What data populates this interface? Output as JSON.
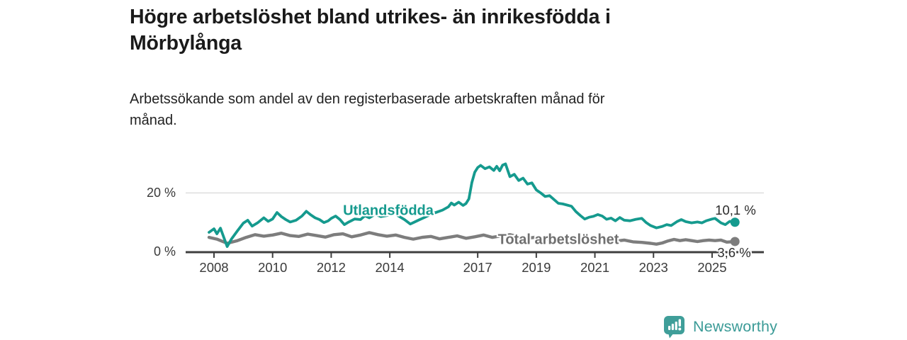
{
  "header": {
    "title_line1": "Högre arbetslöshet bland utrikes- än inrikesfödda i",
    "title_line2": "Mörbylånga",
    "subtitle_line1": "Arbetssökande som andel av den registerbaserade arbetskraften månad för",
    "subtitle_line2": "månad."
  },
  "chart_data": {
    "type": "line",
    "title": "Högre arbetslöshet bland utrikes- än inrikesfödda i Mörbylånga",
    "subtitle": "Arbetssökande som andel av den registerbaserade arbetskraften månad för månad.",
    "xlabel": "",
    "ylabel": "%",
    "xlim": [
      2007.8,
      2025.9
    ],
    "ylim": [
      0,
      33
    ],
    "grid": "y-at-20-only",
    "legend_position": "inline-labels",
    "x_ticks": [
      2008,
      2010,
      2012,
      2014,
      2017,
      2019,
      2021,
      2023,
      2025
    ],
    "y_ticks": [
      {
        "value": 0,
        "label": "0 %"
      },
      {
        "value": 20,
        "label": "20 %"
      }
    ],
    "axis_color": "#3f3f3f",
    "grid_color": "#d8d8d8",
    "series": [
      {
        "name": "Utlandsfödda",
        "color": "#159a8e",
        "end_label": "10,1 %",
        "end_value": 10.1,
        "points": [
          [
            2007.83,
            6.7
          ],
          [
            2008.0,
            7.9
          ],
          [
            2008.1,
            6.2
          ],
          [
            2008.22,
            8.1
          ],
          [
            2008.45,
            1.9
          ],
          [
            2008.6,
            4.5
          ],
          [
            2008.8,
            7.2
          ],
          [
            2009.0,
            9.8
          ],
          [
            2009.15,
            10.8
          ],
          [
            2009.3,
            8.8
          ],
          [
            2009.5,
            10.0
          ],
          [
            2009.7,
            11.6
          ],
          [
            2009.85,
            10.4
          ],
          [
            2010.0,
            11.2
          ],
          [
            2010.15,
            13.4
          ],
          [
            2010.3,
            12.0
          ],
          [
            2010.45,
            11.0
          ],
          [
            2010.6,
            10.2
          ],
          [
            2010.8,
            10.8
          ],
          [
            2011.0,
            12.2
          ],
          [
            2011.15,
            13.8
          ],
          [
            2011.3,
            12.6
          ],
          [
            2011.45,
            11.6
          ],
          [
            2011.6,
            11.0
          ],
          [
            2011.75,
            10.0
          ],
          [
            2011.9,
            10.6
          ],
          [
            2012.0,
            11.4
          ],
          [
            2012.15,
            12.2
          ],
          [
            2012.3,
            11.0
          ],
          [
            2012.45,
            9.3
          ],
          [
            2012.6,
            10.2
          ],
          [
            2012.8,
            11.2
          ],
          [
            2013.0,
            11.0
          ],
          [
            2013.15,
            12.3
          ],
          [
            2013.3,
            11.6
          ],
          [
            2013.5,
            12.8
          ],
          [
            2013.7,
            12.0
          ],
          [
            2013.9,
            12.4
          ],
          [
            2014.0,
            12.8
          ],
          [
            2014.15,
            13.1
          ],
          [
            2014.3,
            12.2
          ],
          [
            2014.5,
            11.0
          ],
          [
            2014.7,
            9.5
          ],
          [
            2014.85,
            10.2
          ],
          [
            2015.0,
            10.9
          ],
          [
            2015.2,
            11.8
          ],
          [
            2015.4,
            12.8
          ],
          [
            2015.6,
            13.5
          ],
          [
            2015.8,
            14.2
          ],
          [
            2016.0,
            15.3
          ],
          [
            2016.1,
            16.6
          ],
          [
            2016.2,
            15.9
          ],
          [
            2016.35,
            16.9
          ],
          [
            2016.5,
            15.8
          ],
          [
            2016.6,
            16.4
          ],
          [
            2016.7,
            18.0
          ],
          [
            2016.8,
            23.5
          ],
          [
            2016.9,
            27.0
          ],
          [
            2017.0,
            28.6
          ],
          [
            2017.1,
            29.3
          ],
          [
            2017.25,
            28.2
          ],
          [
            2017.4,
            28.8
          ],
          [
            2017.55,
            27.6
          ],
          [
            2017.65,
            29.0
          ],
          [
            2017.75,
            27.5
          ],
          [
            2017.85,
            29.4
          ],
          [
            2017.95,
            29.8
          ],
          [
            2018.1,
            25.5
          ],
          [
            2018.25,
            26.3
          ],
          [
            2018.4,
            24.2
          ],
          [
            2018.55,
            25.0
          ],
          [
            2018.7,
            23.0
          ],
          [
            2018.85,
            23.4
          ],
          [
            2019.0,
            21.0
          ],
          [
            2019.15,
            20.0
          ],
          [
            2019.3,
            18.8
          ],
          [
            2019.45,
            19.1
          ],
          [
            2019.6,
            17.8
          ],
          [
            2019.75,
            16.5
          ],
          [
            2019.9,
            16.3
          ],
          [
            2020.05,
            15.9
          ],
          [
            2020.2,
            15.5
          ],
          [
            2020.35,
            13.7
          ],
          [
            2020.5,
            12.4
          ],
          [
            2020.65,
            11.2
          ],
          [
            2020.8,
            11.8
          ],
          [
            2020.95,
            12.1
          ],
          [
            2021.1,
            12.7
          ],
          [
            2021.25,
            12.2
          ],
          [
            2021.4,
            11.1
          ],
          [
            2021.55,
            11.5
          ],
          [
            2021.7,
            10.6
          ],
          [
            2021.85,
            11.7
          ],
          [
            2022.0,
            10.8
          ],
          [
            2022.2,
            10.6
          ],
          [
            2022.4,
            11.1
          ],
          [
            2022.6,
            11.4
          ],
          [
            2022.75,
            10.0
          ],
          [
            2022.9,
            9.0
          ],
          [
            2023.1,
            8.2
          ],
          [
            2023.3,
            8.7
          ],
          [
            2023.45,
            9.3
          ],
          [
            2023.6,
            9.0
          ],
          [
            2023.8,
            10.3
          ],
          [
            2023.95,
            11.0
          ],
          [
            2024.1,
            10.3
          ],
          [
            2024.3,
            9.9
          ],
          [
            2024.5,
            10.2
          ],
          [
            2024.65,
            9.9
          ],
          [
            2024.8,
            10.6
          ],
          [
            2025.0,
            11.2
          ],
          [
            2025.1,
            11.4
          ],
          [
            2025.3,
            9.9
          ],
          [
            2025.45,
            9.3
          ],
          [
            2025.6,
            10.4
          ],
          [
            2025.78,
            10.1
          ]
        ]
      },
      {
        "name": "Total arbetslöshet",
        "color": "#7d7d7d",
        "end_label": "3,6 %",
        "end_value": 3.6,
        "points": [
          [
            2007.83,
            5.0
          ],
          [
            2008.1,
            4.4
          ],
          [
            2008.45,
            3.0
          ],
          [
            2008.8,
            3.9
          ],
          [
            2009.1,
            5.0
          ],
          [
            2009.4,
            5.9
          ],
          [
            2009.7,
            5.4
          ],
          [
            2010.0,
            5.8
          ],
          [
            2010.3,
            6.4
          ],
          [
            2010.6,
            5.6
          ],
          [
            2010.9,
            5.3
          ],
          [
            2011.2,
            6.1
          ],
          [
            2011.5,
            5.6
          ],
          [
            2011.8,
            5.1
          ],
          [
            2012.1,
            5.9
          ],
          [
            2012.4,
            6.2
          ],
          [
            2012.7,
            5.2
          ],
          [
            2013.0,
            5.8
          ],
          [
            2013.3,
            6.6
          ],
          [
            2013.6,
            5.9
          ],
          [
            2013.9,
            5.4
          ],
          [
            2014.2,
            5.8
          ],
          [
            2014.5,
            5.0
          ],
          [
            2014.8,
            4.4
          ],
          [
            2015.1,
            5.0
          ],
          [
            2015.4,
            5.3
          ],
          [
            2015.7,
            4.5
          ],
          [
            2016.0,
            5.0
          ],
          [
            2016.3,
            5.5
          ],
          [
            2016.6,
            4.7
          ],
          [
            2016.9,
            5.2
          ],
          [
            2017.2,
            5.8
          ],
          [
            2017.5,
            5.0
          ],
          [
            2017.8,
            5.5
          ],
          [
            2018.1,
            5.9
          ],
          [
            2018.4,
            5.2
          ],
          [
            2018.7,
            4.7
          ],
          [
            2019.0,
            5.1
          ],
          [
            2019.3,
            4.6
          ],
          [
            2019.6,
            4.2
          ],
          [
            2019.9,
            4.6
          ],
          [
            2020.2,
            5.0
          ],
          [
            2020.5,
            4.4
          ],
          [
            2020.8,
            4.0
          ],
          [
            2021.1,
            4.4
          ],
          [
            2021.4,
            4.0
          ],
          [
            2021.7,
            3.7
          ],
          [
            2022.0,
            4.1
          ],
          [
            2022.3,
            3.5
          ],
          [
            2022.6,
            3.3
          ],
          [
            2022.9,
            3.0
          ],
          [
            2023.1,
            2.7
          ],
          [
            2023.3,
            3.1
          ],
          [
            2023.5,
            3.8
          ],
          [
            2023.7,
            4.3
          ],
          [
            2023.9,
            3.9
          ],
          [
            2024.1,
            4.2
          ],
          [
            2024.3,
            3.9
          ],
          [
            2024.5,
            3.6
          ],
          [
            2024.7,
            3.9
          ],
          [
            2024.9,
            4.1
          ],
          [
            2025.1,
            3.9
          ],
          [
            2025.3,
            4.1
          ],
          [
            2025.5,
            3.4
          ],
          [
            2025.78,
            3.6
          ]
        ]
      }
    ]
  },
  "footer": {
    "brand": "Newsworthy",
    "brand_color": "#3b9b97"
  }
}
